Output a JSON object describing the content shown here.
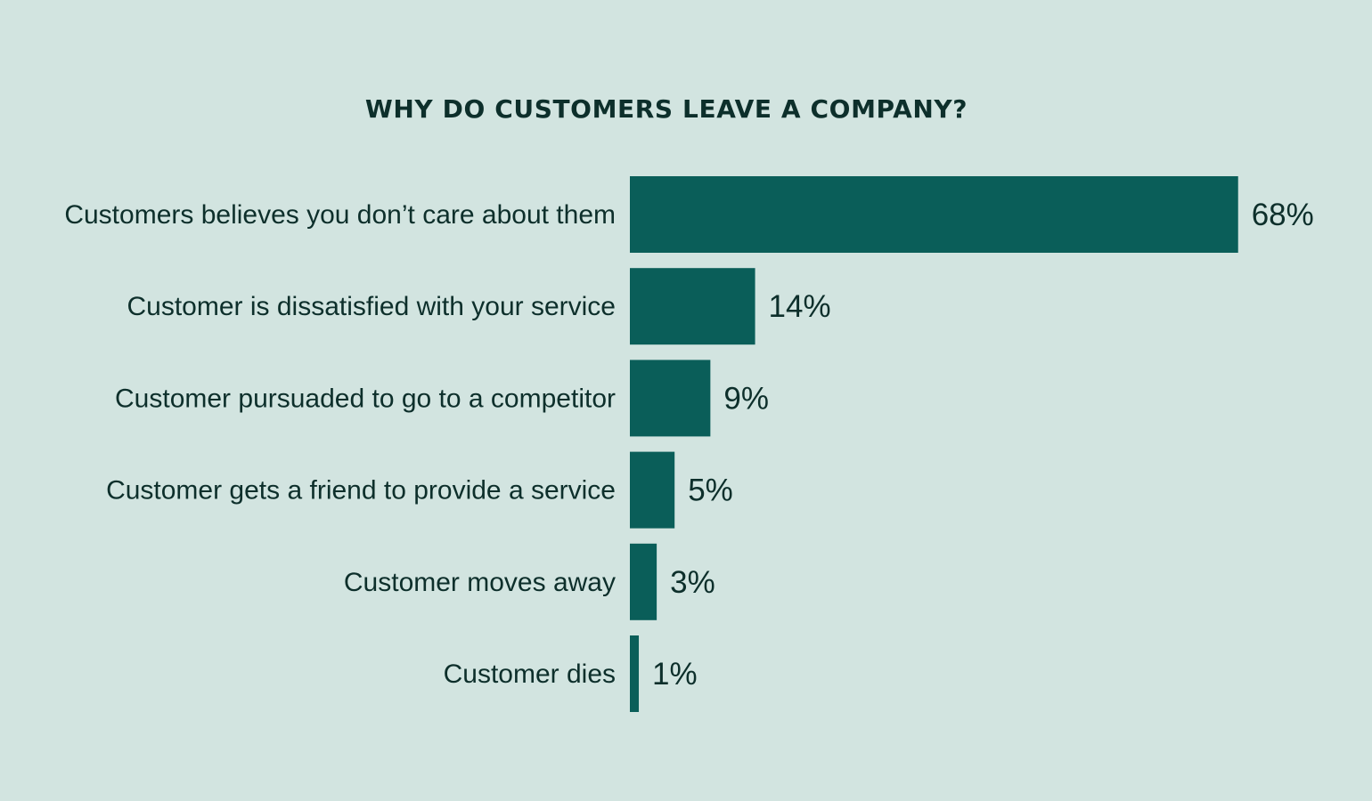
{
  "colors": {
    "background": "#d2e4e0",
    "bar": "#0a5e59",
    "text": "#0d2f2b"
  },
  "chart_data": {
    "type": "bar",
    "orientation": "horizontal",
    "title": "WHY DO CUSTOMERS LEAVE A COMPANY?",
    "categories": [
      "Customers believes you don’t care about them",
      "Customer is dissatisfied with your service",
      "Customer pursuaded to go to a competitor",
      "Customer gets a friend to provide a service",
      "Customer moves away",
      "Customer dies"
    ],
    "values": [
      68,
      14,
      9,
      5,
      3,
      1
    ],
    "value_labels": [
      "68%",
      "14%",
      "9%",
      "5%",
      "3%",
      "1%"
    ],
    "unit": "%",
    "grid": false,
    "legend": "none"
  }
}
